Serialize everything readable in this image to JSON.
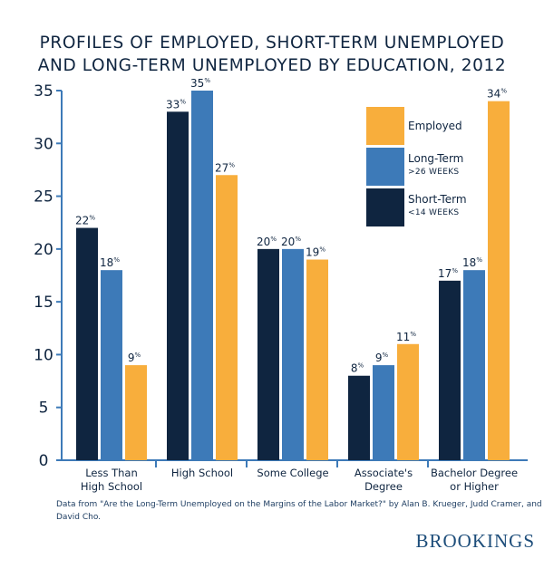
{
  "chart_data": {
    "type": "bar",
    "title_lines": [
      "PROFILES OF EMPLOYED, SHORT-TERM UNEMPLOYED",
      "AND LONG-TERM UNEMPLOYED BY EDUCATION, 2012"
    ],
    "categories": [
      [
        "Less Than",
        "High School"
      ],
      [
        "High School"
      ],
      [
        "Some College"
      ],
      [
        "Associate's",
        "Degree"
      ],
      [
        "Bachelor Degree",
        "or Higher"
      ]
    ],
    "series": [
      {
        "name": "Short-Term",
        "sub": "<14 WEEKS",
        "color": "#0f2540",
        "values": [
          22,
          33,
          20,
          8,
          17
        ]
      },
      {
        "name": "Long-Term",
        "sub": ">26 WEEKS",
        "color": "#3d7ab8",
        "values": [
          18,
          35,
          20,
          9,
          18
        ]
      },
      {
        "name": "Employed",
        "sub": "",
        "color": "#f8ae3c",
        "values": [
          9,
          27,
          19,
          11,
          34
        ]
      }
    ],
    "value_suffix": "%",
    "legend_order": [
      "Employed",
      "Long-Term",
      "Short-Term"
    ],
    "legend_position": "top-right",
    "yticks": [
      "0",
      "5",
      "10",
      "15",
      "20",
      "25",
      "30",
      "35"
    ],
    "ylim": [
      0,
      35
    ],
    "grid": false,
    "axis_color": "#3d7ab8"
  },
  "source": "Data from \"Are the Long-Term Unemployed on the Margins of the Labor Market?\" by Alan B. Krueger, Judd Cramer, and David Cho.",
  "brand": "BROOKINGS"
}
